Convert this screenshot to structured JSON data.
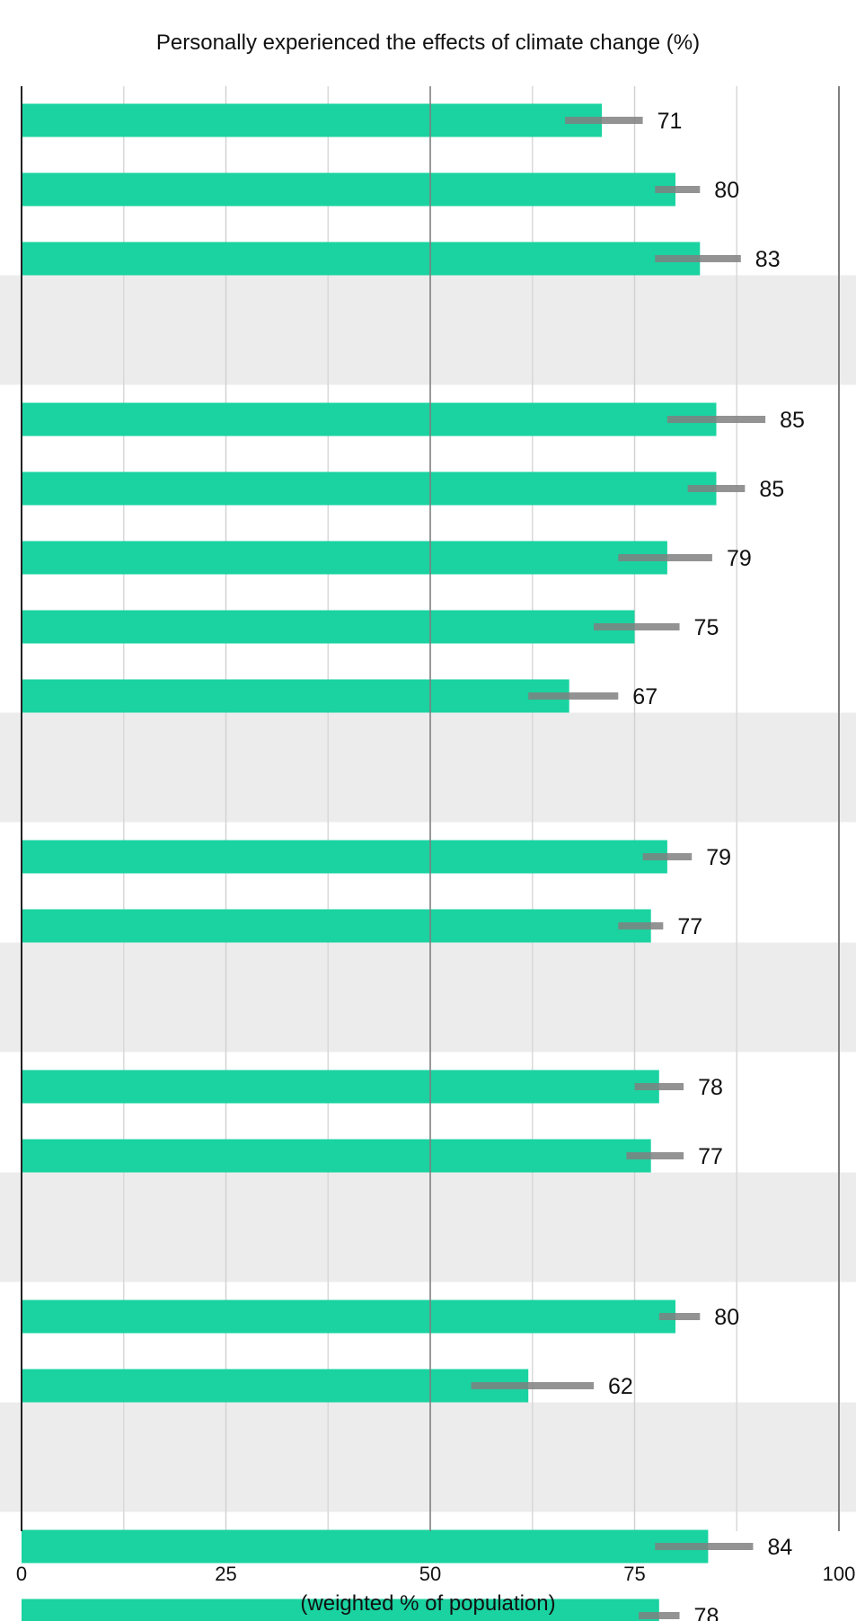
{
  "chart_data": {
    "type": "bar",
    "orientation": "horizontal",
    "title": "Personally experienced the effects of climate change (%)",
    "xlabel": "(weighted % of population)",
    "xlim": [
      0,
      100
    ],
    "ticks": [
      0,
      25,
      50,
      75,
      100
    ],
    "tick_labels": [
      "0",
      "25",
      "50",
      "75",
      "100"
    ],
    "grid": true,
    "bar_color": "#1ad3a1",
    "error_bar_color": "#808080",
    "shaded_band_color": "#ececec",
    "groups": [
      {
        "bars": [
          {
            "value": 71,
            "label": "71",
            "ci": [
              66.5,
              76
            ]
          },
          {
            "value": 80,
            "label": "80",
            "ci": [
              77.5,
              83
            ]
          },
          {
            "value": 83,
            "label": "83",
            "ci": [
              77.5,
              88
            ]
          }
        ]
      },
      {
        "bars": [
          {
            "value": 85,
            "label": "85",
            "ci": [
              79,
              91
            ]
          },
          {
            "value": 85,
            "label": "85",
            "ci": [
              81.5,
              88.5
            ]
          },
          {
            "value": 79,
            "label": "79",
            "ci": [
              73,
              84.5
            ]
          },
          {
            "value": 75,
            "label": "75",
            "ci": [
              70,
              80.5
            ]
          },
          {
            "value": 67,
            "label": "67",
            "ci": [
              62,
              73
            ]
          }
        ]
      },
      {
        "bars": [
          {
            "value": 79,
            "label": "79",
            "ci": [
              76,
              82
            ]
          },
          {
            "value": 77,
            "label": "77",
            "ci": [
              73,
              78.5
            ]
          }
        ]
      },
      {
        "bars": [
          {
            "value": 78,
            "label": "78",
            "ci": [
              75,
              81
            ]
          },
          {
            "value": 77,
            "label": "77",
            "ci": [
              74,
              81
            ]
          }
        ]
      },
      {
        "bars": [
          {
            "value": 80,
            "label": "80",
            "ci": [
              78,
              83
            ]
          },
          {
            "value": 62,
            "label": "62",
            "ci": [
              55,
              70
            ]
          }
        ]
      },
      {
        "bars": [
          {
            "value": 84,
            "label": "84",
            "ci": [
              77.5,
              89.5
            ]
          },
          {
            "value": 78,
            "label": "78",
            "ci": [
              75.5,
              80.5
            ]
          }
        ]
      }
    ]
  }
}
